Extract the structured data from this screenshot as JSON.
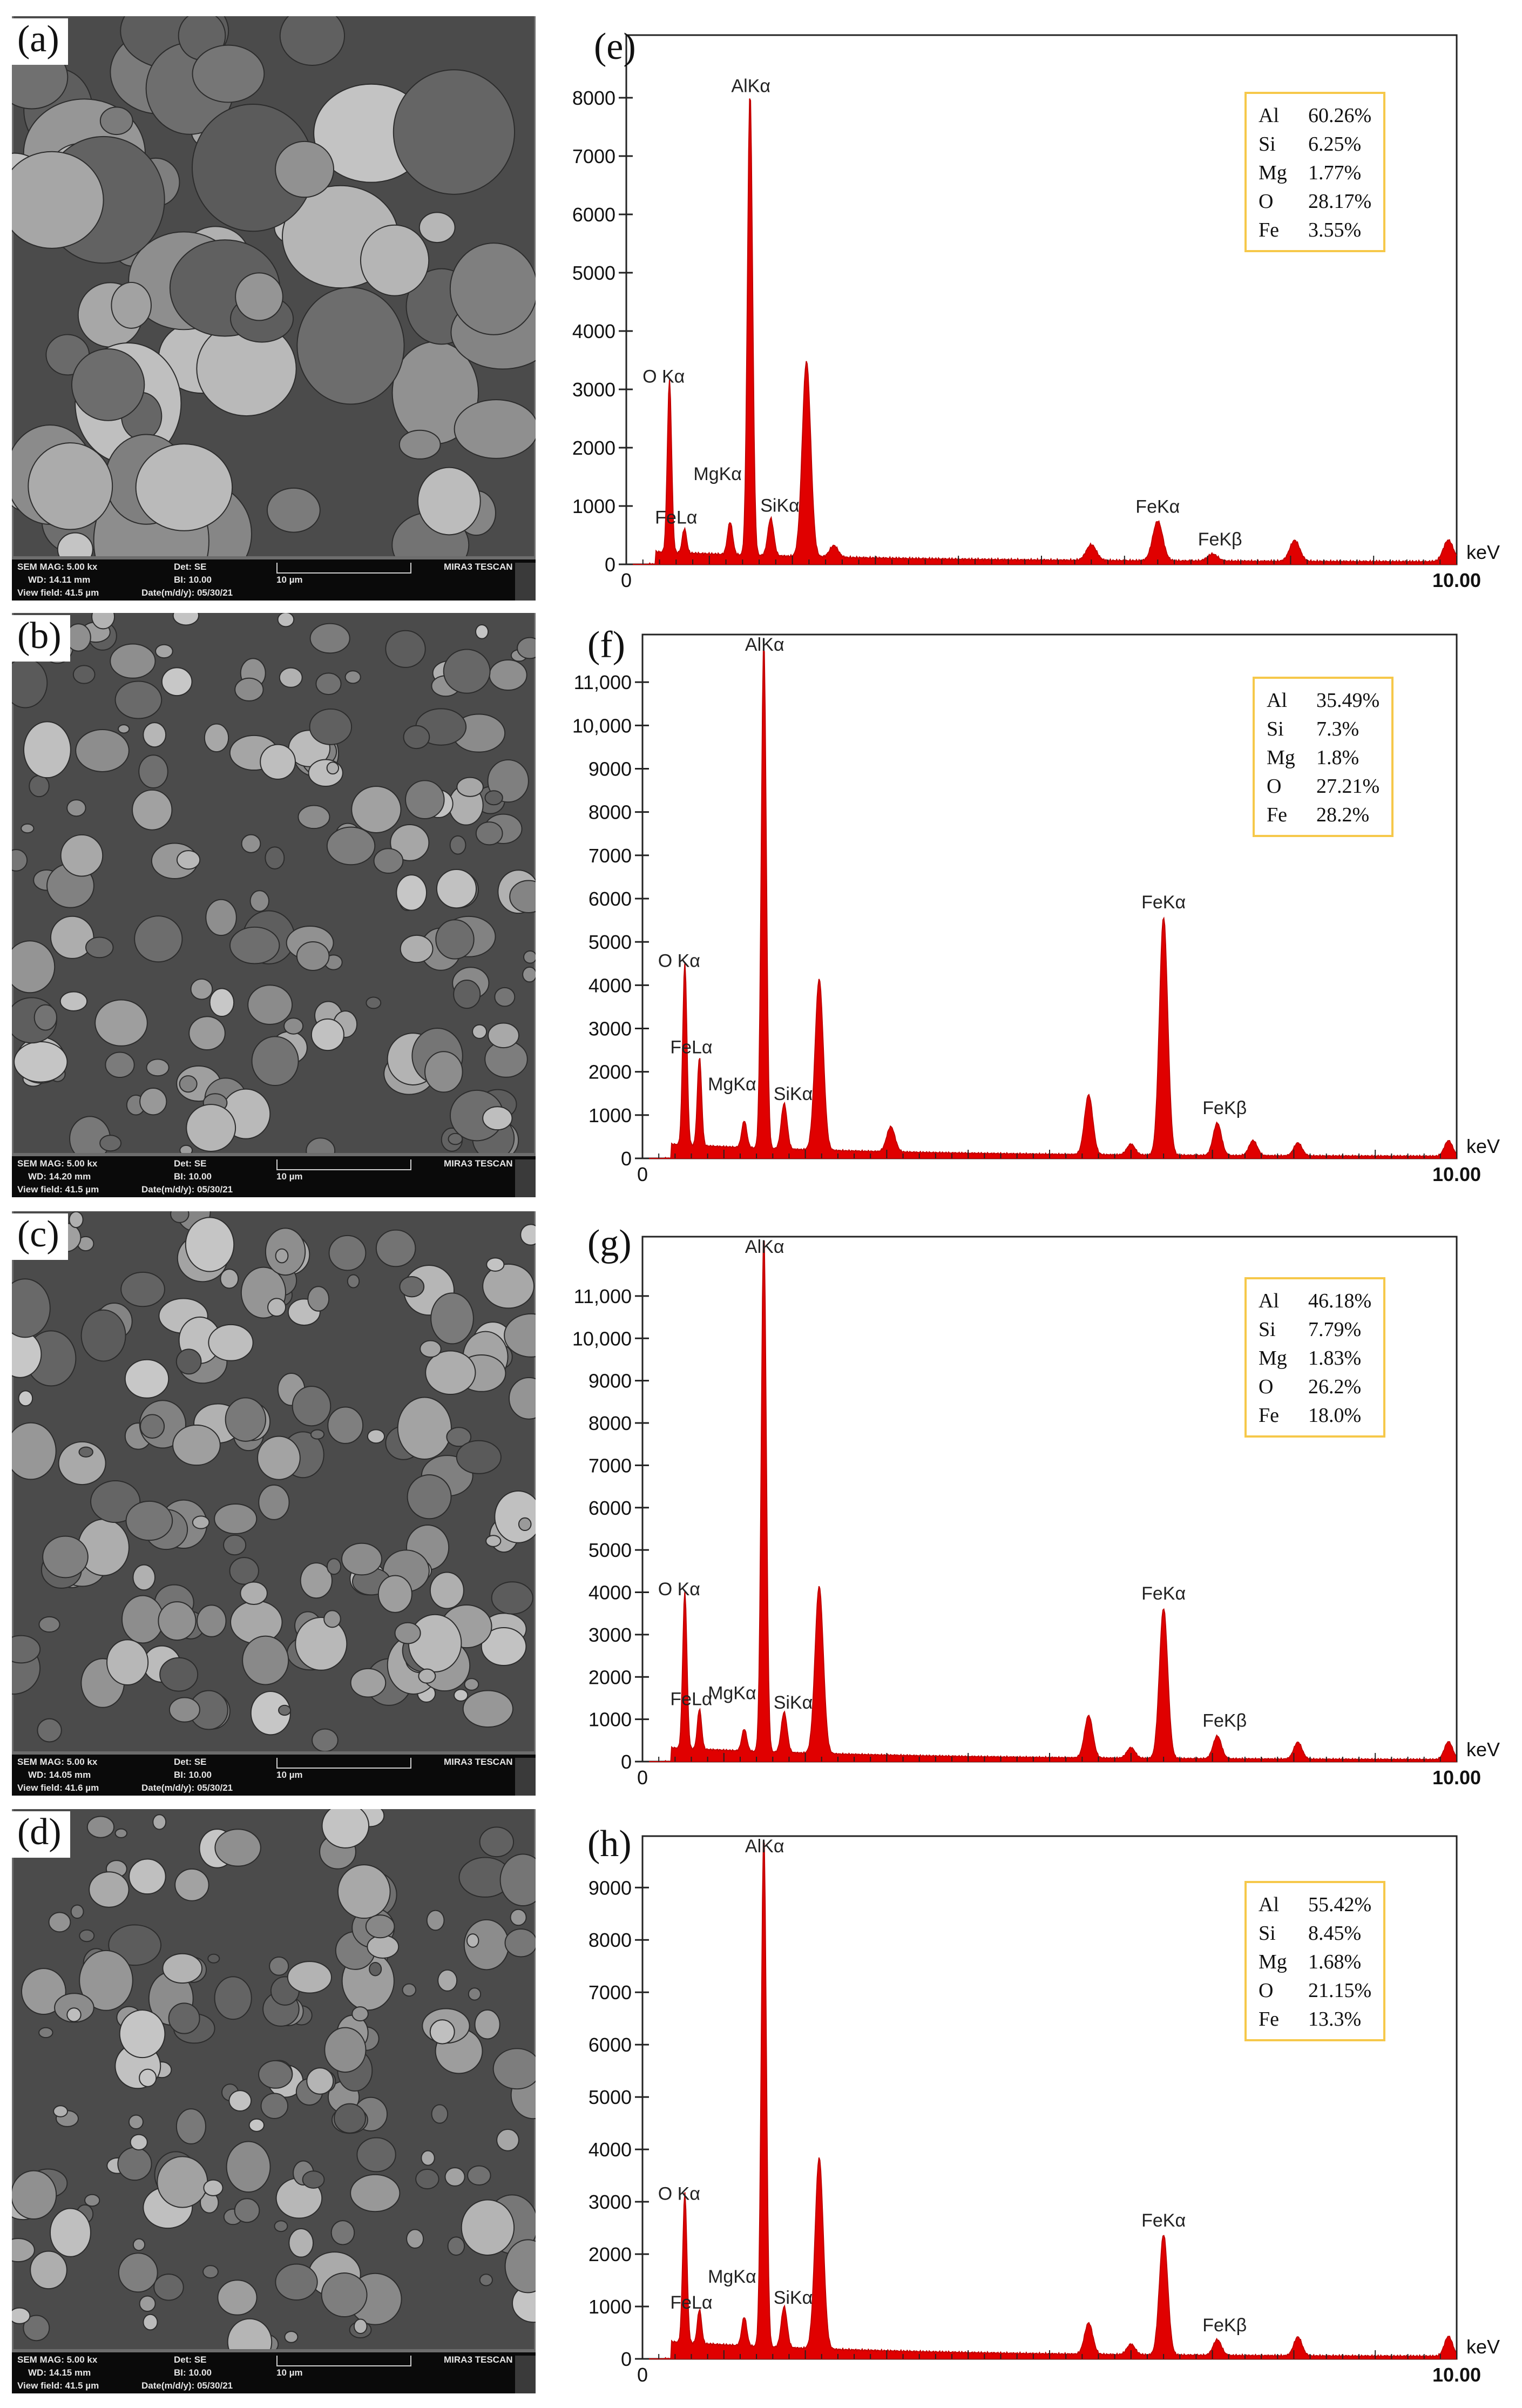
{
  "panels_left": [
    {
      "label": "(a)",
      "bar": {
        "mag": "SEM MAG: 5.00 kx",
        "det": "Det: SE",
        "wd": "WD: 14.11 mm",
        "bi": "BI: 10.00",
        "scale": "10 µm",
        "vf": "View field: 41.5 µm",
        "date": "Date(m/d/y): 05/30/21",
        "brand": "MIRA3 TESCAN"
      }
    },
    {
      "label": "(b)",
      "bar": {
        "mag": "SEM MAG: 5.00 kx",
        "det": "Det: SE",
        "wd": "WD: 14.20 mm",
        "bi": "BI: 10.00",
        "scale": "10 µm",
        "vf": "View field: 41.5 µm",
        "date": "Date(m/d/y): 05/30/21",
        "brand": "MIRA3 TESCAN"
      }
    },
    {
      "label": "(c)",
      "bar": {
        "mag": "SEM MAG: 5.00 kx",
        "det": "Det: SE",
        "wd": "WD: 14.05 mm",
        "bi": "BI: 10.00",
        "scale": "10 µm",
        "vf": "View field: 41.6 µm",
        "date": "Date(m/d/y): 05/30/21",
        "brand": "MIRA3 TESCAN"
      }
    },
    {
      "label": "(d)",
      "bar": {
        "mag": "SEM MAG: 5.00 kx",
        "det": "Det: SE",
        "wd": "WD: 14.15 mm",
        "bi": "BI: 10.00",
        "scale": "10 µm",
        "vf": "View field: 41.5 µm",
        "date": "Date(m/d/y): 05/30/21",
        "brand": "MIRA3 TESCAN"
      }
    }
  ],
  "colors": {
    "spectrum": "#e00000",
    "legend_border": "#f6c84a",
    "axis": "#222222"
  },
  "chart_data": [
    {
      "type": "area",
      "label": "(e)",
      "xlabel": "keV",
      "xlim": [
        0,
        10.0
      ],
      "x_tick_labels": [
        "0",
        "10.00"
      ],
      "ylim": [
        0,
        9000
      ],
      "y_ticks": [
        0,
        1000,
        2000,
        3000,
        4000,
        5000,
        6000,
        7000,
        8000
      ],
      "y_tick_labels": [
        "0",
        "1000",
        "2000",
        "3000",
        "4000",
        "5000",
        "6000",
        "7000",
        "8000"
      ],
      "peaks": [
        {
          "name": "O Kα",
          "x": 0.52,
          "y": 2950,
          "w": 0.025
        },
        {
          "name": "FeLα",
          "x": 0.7,
          "y": 420,
          "w": 0.025
        },
        {
          "name": "MgKα",
          "x": 1.25,
          "y": 560,
          "w": 0.03
        },
        {
          "name": "AlKα",
          "x": 1.49,
          "y": 7950,
          "w": 0.03
        },
        {
          "name": "SiKα",
          "x": 1.74,
          "y": 640,
          "w": 0.035
        },
        {
          "name": "",
          "x": 2.17,
          "y": 3350,
          "w": 0.05
        },
        {
          "name": "",
          "x": 2.5,
          "y": 200,
          "w": 0.05
        },
        {
          "name": "",
          "x": 5.6,
          "y": 270,
          "w": 0.06
        },
        {
          "name": "FeKα",
          "x": 6.4,
          "y": 680,
          "w": 0.06
        },
        {
          "name": "FeKβ",
          "x": 7.06,
          "y": 120,
          "w": 0.06
        },
        {
          "name": "",
          "x": 8.05,
          "y": 360,
          "w": 0.06
        },
        {
          "name": "",
          "x": 9.9,
          "y": 370,
          "w": 0.06
        }
      ],
      "composition": [
        {
          "el": "Al",
          "v": "60.26%"
        },
        {
          "el": "Si",
          "v": "6.25%"
        },
        {
          "el": "Mg",
          "v": "1.77%"
        },
        {
          "el": "O",
          "v": "28.17%"
        },
        {
          "el": "Fe",
          "v": "3.55%"
        }
      ]
    },
    {
      "type": "area",
      "label": "(f)",
      "xlabel": "keV",
      "xlim": [
        0,
        10.0
      ],
      "x_tick_labels": [
        "0",
        "10.00"
      ],
      "ylim": [
        0,
        12000
      ],
      "y_ticks": [
        0,
        1000,
        2000,
        3000,
        4000,
        5000,
        6000,
        7000,
        8000,
        9000,
        10000,
        11000
      ],
      "y_tick_labels": [
        "0",
        "1000",
        "2000",
        "3000",
        "4000",
        "5000",
        "6000",
        "7000",
        "8000",
        "9000",
        "10,000",
        "11,000"
      ],
      "peaks": [
        {
          "name": "O Kα",
          "x": 0.52,
          "y": 4200,
          "w": 0.025
        },
        {
          "name": "FeLα",
          "x": 0.7,
          "y": 2050,
          "w": 0.025
        },
        {
          "name": "MgKα",
          "x": 1.25,
          "y": 620,
          "w": 0.03
        },
        {
          "name": "AlKα",
          "x": 1.49,
          "y": 11700,
          "w": 0.03
        },
        {
          "name": "SiKα",
          "x": 1.74,
          "y": 1050,
          "w": 0.035
        },
        {
          "name": "",
          "x": 2.17,
          "y": 3950,
          "w": 0.05
        },
        {
          "name": "",
          "x": 3.05,
          "y": 580,
          "w": 0.05
        },
        {
          "name": "",
          "x": 5.48,
          "y": 1380,
          "w": 0.05
        },
        {
          "name": "",
          "x": 6.0,
          "y": 250,
          "w": 0.05
        },
        {
          "name": "FeKα",
          "x": 6.4,
          "y": 5500,
          "w": 0.05
        },
        {
          "name": "FeKβ",
          "x": 7.06,
          "y": 750,
          "w": 0.05
        },
        {
          "name": "",
          "x": 7.5,
          "y": 350,
          "w": 0.05
        },
        {
          "name": "",
          "x": 8.05,
          "y": 300,
          "w": 0.05
        },
        {
          "name": "",
          "x": 9.9,
          "y": 360,
          "w": 0.05
        }
      ],
      "composition": [
        {
          "el": "Al",
          "v": "35.49%"
        },
        {
          "el": "Si",
          "v": "7.3%"
        },
        {
          "el": "Mg",
          "v": "1.8%"
        },
        {
          "el": "O",
          "v": "27.21%"
        },
        {
          "el": "Fe",
          "v": "28.2%"
        }
      ]
    },
    {
      "type": "area",
      "label": "(g)",
      "xlabel": "keV",
      "xlim": [
        0,
        10.0
      ],
      "x_tick_labels": [
        "0",
        "10.00"
      ],
      "ylim": [
        0,
        12000
      ],
      "y_ticks": [
        0,
        1000,
        2000,
        3000,
        4000,
        5000,
        6000,
        7000,
        8000,
        9000,
        10000,
        11000
      ],
      "y_tick_labels": [
        "0",
        "1000",
        "2000",
        "3000",
        "4000",
        "5000",
        "6000",
        "7000",
        "8000",
        "9000",
        "10,000",
        "11,000"
      ],
      "peaks": [
        {
          "name": "O Kα",
          "x": 0.52,
          "y": 3700,
          "w": 0.025
        },
        {
          "name": "FeLα",
          "x": 0.7,
          "y": 950,
          "w": 0.025
        },
        {
          "name": "MgKα",
          "x": 1.25,
          "y": 520,
          "w": 0.03
        },
        {
          "name": "AlKα",
          "x": 1.49,
          "y": 12300,
          "w": 0.03
        },
        {
          "name": "SiKα",
          "x": 1.74,
          "y": 950,
          "w": 0.035
        },
        {
          "name": "",
          "x": 2.17,
          "y": 3950,
          "w": 0.05
        },
        {
          "name": "",
          "x": 5.48,
          "y": 1000,
          "w": 0.05
        },
        {
          "name": "",
          "x": 6.0,
          "y": 250,
          "w": 0.05
        },
        {
          "name": "FeKα",
          "x": 6.4,
          "y": 3550,
          "w": 0.05
        },
        {
          "name": "FeKβ",
          "x": 7.06,
          "y": 540,
          "w": 0.05
        },
        {
          "name": "",
          "x": 8.05,
          "y": 400,
          "w": 0.05
        },
        {
          "name": "",
          "x": 9.9,
          "y": 420,
          "w": 0.05
        }
      ],
      "composition": [
        {
          "el": "Al",
          "v": "46.18%"
        },
        {
          "el": "Si",
          "v": "7.79%"
        },
        {
          "el": "Mg",
          "v": "1.83%"
        },
        {
          "el": "O",
          "v": "26.2%"
        },
        {
          "el": "Fe",
          "v": "18.0%"
        }
      ]
    },
    {
      "type": "area",
      "label": "(h)",
      "xlabel": "keV",
      "xlim": [
        0,
        10.0
      ],
      "x_tick_labels": [
        "0",
        "10.00"
      ],
      "ylim": [
        0,
        10000
      ],
      "y_ticks": [
        0,
        1000,
        2000,
        3000,
        4000,
        5000,
        6000,
        7000,
        8000,
        9000
      ],
      "y_tick_labels": [
        "0",
        "1000",
        "2000",
        "3000",
        "4000",
        "5000",
        "6000",
        "7000",
        "8000",
        "9000"
      ],
      "peaks": [
        {
          "name": "O Kα",
          "x": 0.52,
          "y": 2850,
          "w": 0.025
        },
        {
          "name": "FeLα",
          "x": 0.7,
          "y": 650,
          "w": 0.025
        },
        {
          "name": "MgKα",
          "x": 1.25,
          "y": 550,
          "w": 0.03
        },
        {
          "name": "AlKα",
          "x": 1.49,
          "y": 9800,
          "w": 0.03
        },
        {
          "name": "SiKα",
          "x": 1.74,
          "y": 780,
          "w": 0.035
        },
        {
          "name": "",
          "x": 2.17,
          "y": 3650,
          "w": 0.05
        },
        {
          "name": "",
          "x": 5.48,
          "y": 600,
          "w": 0.05
        },
        {
          "name": "",
          "x": 6.0,
          "y": 200,
          "w": 0.05
        },
        {
          "name": "FeKα",
          "x": 6.4,
          "y": 2300,
          "w": 0.05
        },
        {
          "name": "FeKβ",
          "x": 7.06,
          "y": 300,
          "w": 0.05
        },
        {
          "name": "",
          "x": 8.05,
          "y": 360,
          "w": 0.05
        },
        {
          "name": "",
          "x": 9.9,
          "y": 380,
          "w": 0.05
        }
      ],
      "composition": [
        {
          "el": "Al",
          "v": "55.42%"
        },
        {
          "el": "Si",
          "v": "8.45%"
        },
        {
          "el": "Mg",
          "v": "1.68%"
        },
        {
          "el": "O",
          "v": "21.15%"
        },
        {
          "el": "Fe",
          "v": "13.3%"
        }
      ]
    }
  ]
}
